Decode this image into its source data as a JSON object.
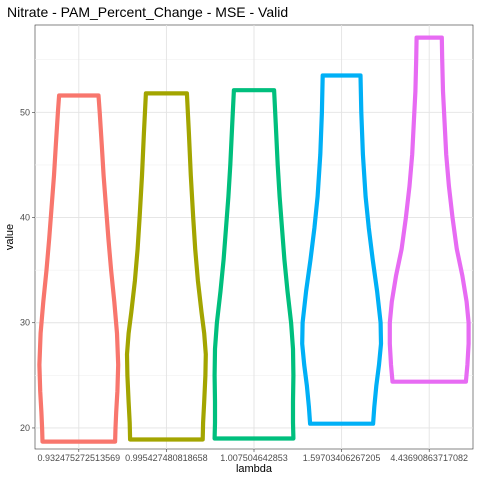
{
  "chart_data": {
    "type": "violin",
    "title": "Nitrate - PAM_Percent_Change - MSE - Valid",
    "xlabel": "lambda",
    "ylabel": "value",
    "ylim": [
      18.0,
      58.3
    ],
    "yticks": [
      20,
      30,
      40,
      50
    ],
    "grid": true,
    "legend": "none",
    "categories": [
      "0.932475272513569",
      "0.995427480818658",
      "1.007504642853",
      "1.59703406267205",
      "4.43690863717082"
    ],
    "series": [
      {
        "category": "0.932475272513569",
        "color": "#F8766D",
        "min": 18.7,
        "max": 51.6,
        "profile": [
          [
            18.7,
            0.92
          ],
          [
            20.0,
            0.93
          ],
          [
            21.5,
            0.95
          ],
          [
            23.5,
            0.98
          ],
          [
            26.0,
            1.0
          ],
          [
            29.0,
            0.97
          ],
          [
            32.0,
            0.9
          ],
          [
            35.0,
            0.82
          ],
          [
            38.0,
            0.75
          ],
          [
            41.0,
            0.69
          ],
          [
            44.0,
            0.63
          ],
          [
            47.0,
            0.58
          ],
          [
            50.0,
            0.53
          ],
          [
            51.6,
            0.5
          ]
        ]
      },
      {
        "category": "0.995427480818658",
        "color": "#A3A500",
        "min": 18.9,
        "max": 51.8,
        "profile": [
          [
            18.9,
            0.92
          ],
          [
            20.5,
            0.93
          ],
          [
            22.5,
            0.96
          ],
          [
            25.0,
            0.99
          ],
          [
            27.0,
            1.0
          ],
          [
            29.0,
            0.96
          ],
          [
            31.0,
            0.89
          ],
          [
            34.0,
            0.8
          ],
          [
            37.0,
            0.73
          ],
          [
            40.0,
            0.68
          ],
          [
            44.0,
            0.62
          ],
          [
            48.0,
            0.57
          ],
          [
            51.8,
            0.52
          ]
        ]
      },
      {
        "category": "1.007504642853",
        "color": "#00BF7D",
        "min": 19.0,
        "max": 52.1,
        "profile": [
          [
            19.0,
            1.0
          ],
          [
            20.5,
            0.99
          ],
          [
            22.5,
            0.99
          ],
          [
            25.0,
            1.0
          ],
          [
            27.5,
            0.99
          ],
          [
            30.0,
            0.94
          ],
          [
            33.0,
            0.85
          ],
          [
            36.0,
            0.77
          ],
          [
            39.0,
            0.71
          ],
          [
            42.0,
            0.65
          ],
          [
            45.0,
            0.6
          ],
          [
            49.0,
            0.55
          ],
          [
            52.1,
            0.51
          ]
        ]
      },
      {
        "category": "1.59703406267205",
        "color": "#00B0F6",
        "min": 20.4,
        "max": 53.5,
        "profile": [
          [
            20.4,
            0.8
          ],
          [
            22.0,
            0.83
          ],
          [
            24.0,
            0.88
          ],
          [
            26.0,
            0.95
          ],
          [
            28.0,
            1.0
          ],
          [
            30.0,
            0.99
          ],
          [
            33.0,
            0.9
          ],
          [
            36.0,
            0.79
          ],
          [
            39.0,
            0.69
          ],
          [
            42.0,
            0.61
          ],
          [
            46.0,
            0.54
          ],
          [
            50.0,
            0.5
          ],
          [
            53.5,
            0.48
          ]
        ]
      },
      {
        "category": "4.43690863717082",
        "color": "#E76BF3",
        "min": 24.4,
        "max": 57.1,
        "profile": [
          [
            24.4,
            0.93
          ],
          [
            26.0,
            0.97
          ],
          [
            28.0,
            1.0
          ],
          [
            30.0,
            1.0
          ],
          [
            32.0,
            0.95
          ],
          [
            34.5,
            0.84
          ],
          [
            37.0,
            0.7
          ],
          [
            40.0,
            0.59
          ],
          [
            43.0,
            0.5
          ],
          [
            46.0,
            0.43
          ],
          [
            49.0,
            0.39
          ],
          [
            52.0,
            0.35
          ],
          [
            55.0,
            0.33
          ],
          [
            57.1,
            0.32
          ]
        ]
      }
    ]
  }
}
